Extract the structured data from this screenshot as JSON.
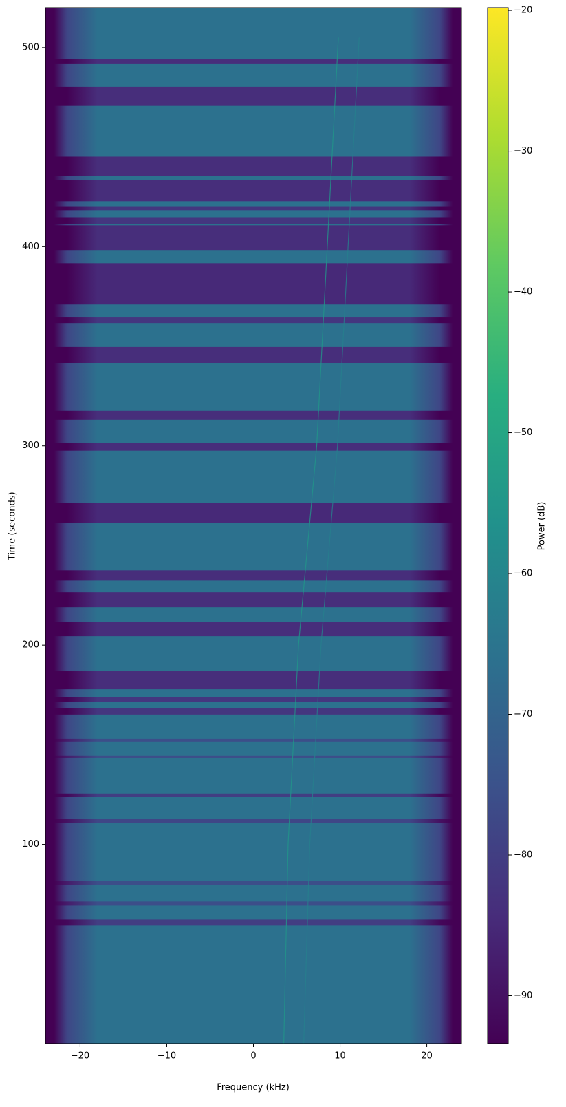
{
  "chart_data": {
    "type": "spectrogram",
    "xlabel": "Frequency (kHz)",
    "ylabel": "Time (seconds)",
    "colorbar_label": "Power (dB)",
    "xlim": [
      -24,
      24
    ],
    "xticks": [
      {
        "value": -20,
        "label": "−20"
      },
      {
        "value": -10,
        "label": "−10"
      },
      0,
      10,
      20
    ],
    "ylim": [
      0,
      520
    ],
    "yticks": [
      100,
      200,
      300,
      400,
      500
    ],
    "clim": [
      -93.4,
      -19.8
    ],
    "cticks": [
      {
        "value": -20,
        "label": "−20"
      },
      {
        "value": -30,
        "label": "−30"
      },
      {
        "value": -40,
        "label": "−40"
      },
      {
        "value": -50,
        "label": "−50"
      },
      {
        "value": -60,
        "label": "−60"
      },
      {
        "value": -70,
        "label": "−70"
      },
      {
        "value": -80,
        "label": "−80"
      },
      {
        "value": -90,
        "label": "−90"
      }
    ],
    "colormap": [
      "#440154",
      "#472d7b",
      "#3b528b",
      "#2c728e",
      "#21918c",
      "#28ae80",
      "#5ec962",
      "#addc30",
      "#fde725"
    ],
    "background_power": -66,
    "edge_profile": {
      "f": [
        -24,
        -23,
        -21.5,
        -18,
        18,
        21.5,
        23,
        24
      ],
      "offset": [
        -30,
        -28,
        -12,
        0,
        0,
        -12,
        -28,
        -30
      ]
    },
    "bands": [
      {
        "t0": 491.7,
        "t1": 494.1,
        "power": -84
      },
      {
        "t0": 470.7,
        "t1": 480.3,
        "power": -84
      },
      {
        "t0": 435.5,
        "t1": 445.2,
        "power": -84
      },
      {
        "t0": 422.8,
        "t1": 433.4,
        "power": -84
      },
      {
        "t0": 418.3,
        "t1": 420.3,
        "power": -82
      },
      {
        "t0": 411.4,
        "t1": 414.8,
        "power": -82
      },
      {
        "t0": 398.3,
        "t1": 410.7,
        "power": -84
      },
      {
        "t0": 371.0,
        "t1": 391.7,
        "power": -85
      },
      {
        "t0": 361.7,
        "t1": 364.5,
        "power": -82
      },
      {
        "t0": 341.7,
        "t1": 349.7,
        "power": -84
      },
      {
        "t0": 313.1,
        "t1": 317.6,
        "power": -84
      },
      {
        "t0": 297.6,
        "t1": 301.4,
        "power": -84
      },
      {
        "t0": 261.4,
        "t1": 271.4,
        "power": -85
      },
      {
        "t0": 232.4,
        "t1": 237.6,
        "power": -84
      },
      {
        "t0": 219.0,
        "t1": 226.6,
        "power": -84
      },
      {
        "t0": 204.5,
        "t1": 211.7,
        "power": -84
      },
      {
        "t0": 177.9,
        "t1": 187.2,
        "power": -84
      },
      {
        "t0": 171.4,
        "t1": 173.8,
        "power": -82
      },
      {
        "t0": 165.2,
        "t1": 168.6,
        "power": -82
      },
      {
        "t0": 151.4,
        "t1": 153.1,
        "power": -76
      },
      {
        "t0": 143.4,
        "t1": 144.5,
        "power": -76
      },
      {
        "t0": 123.8,
        "t1": 125.5,
        "power": -80
      },
      {
        "t0": 110.7,
        "t1": 112.8,
        "power": -78
      },
      {
        "t0": 79.7,
        "t1": 81.7,
        "power": -76
      },
      {
        "t0": 69.3,
        "t1": 71.4,
        "power": -76
      },
      {
        "t0": 59.3,
        "t1": 62.4,
        "power": -80
      }
    ],
    "tracks": [
      {
        "f": [
          3.5,
          4.0,
          5.2,
          7.3,
          9.8
        ],
        "t": [
          0,
          100,
          200,
          300,
          505
        ],
        "power": -55
      },
      {
        "f": [
          5.8,
          6.5,
          7.8,
          9.7,
          12.2
        ],
        "t": [
          0,
          100,
          200,
          300,
          505
        ],
        "power": -62
      }
    ]
  }
}
